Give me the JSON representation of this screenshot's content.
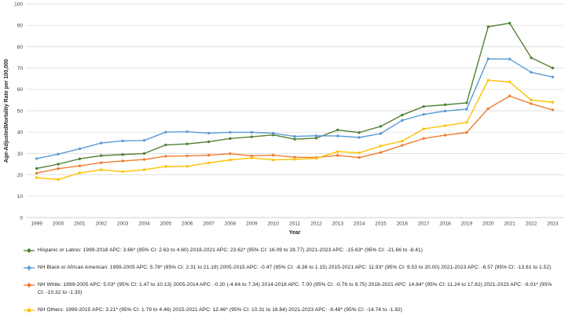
{
  "chart_data": {
    "type": "line",
    "title": "",
    "xlabel": "Year",
    "ylabel": "Age-AdjustedMortality Rate per 100,000",
    "x": [
      1999,
      2000,
      2001,
      2002,
      2003,
      2004,
      2005,
      2006,
      2007,
      2008,
      2009,
      2010,
      2011,
      2012,
      2013,
      2014,
      2015,
      2016,
      2017,
      2018,
      2019,
      2020,
      2021,
      2022,
      2023
    ],
    "ylim": [
      0,
      100
    ],
    "y_ticks": [
      0,
      10,
      20,
      30,
      40,
      50,
      60,
      70,
      80,
      90,
      100
    ],
    "grid": true,
    "legend_position": "bottom-left",
    "series": [
      {
        "name": "Hispanic or Latino",
        "color": "#538135",
        "values": [
          23.0,
          25.0,
          27.5,
          29.0,
          29.5,
          30.0,
          34.0,
          34.5,
          35.5,
          37.0,
          37.8,
          38.7,
          36.7,
          37.2,
          41.0,
          39.8,
          42.7,
          48.0,
          52.0,
          52.8,
          53.7,
          89.3,
          91.0,
          74.8,
          70.0
        ]
      },
      {
        "name": "NH Black or African American",
        "color": "#5B9BD5",
        "values": [
          27.6,
          29.7,
          32.2,
          34.9,
          35.9,
          36.1,
          40.0,
          40.2,
          39.5,
          39.9,
          39.9,
          39.5,
          38.0,
          38.3,
          38.2,
          37.5,
          39.3,
          45.5,
          48.3,
          49.9,
          50.8,
          74.3,
          74.2,
          68.0,
          65.8
        ]
      },
      {
        "name": "NH White",
        "color": "#ED7D31",
        "values": [
          20.8,
          22.9,
          24.2,
          25.7,
          26.5,
          27.2,
          28.7,
          28.9,
          29.2,
          29.9,
          28.9,
          29.2,
          28.3,
          28.1,
          29.1,
          28.1,
          30.5,
          33.8,
          37.0,
          38.6,
          39.8,
          51.0,
          56.9,
          53.3,
          50.4
        ]
      },
      {
        "name": "NH Others",
        "color": "#FFC000",
        "values": [
          18.7,
          17.8,
          20.9,
          22.4,
          21.5,
          22.4,
          23.9,
          24.0,
          25.6,
          27.0,
          27.9,
          27.0,
          27.3,
          27.7,
          30.9,
          30.3,
          33.5,
          35.8,
          41.5,
          43.0,
          44.5,
          64.3,
          63.5,
          55.0,
          54.0
        ]
      }
    ],
    "colors": {
      "gridline": "#D9D9D9",
      "axis_line": "#BFBFBF",
      "tick_text": "#404040"
    }
  },
  "legend": {
    "items": [
      {
        "label": "Hispanic or Latino: 1999-2018 APC: 3.66* (95% CI: 2.63 to 4.60) 2018-2021 APC: 23.62* (95% CI: 16.09 to 28.77) 2021-2023 APC: -15.63* (95% CI: -21.66 to -8.41)",
        "color": "#538135",
        "icon": "line-marker-icon"
      },
      {
        "label": "NH Black or African American: 1999-2005 APC: 5.78* (95% CI: 2.31 to 21.19) 2005-2015 APC: -0.47 (95% CI: -8.36 to 1.15) 2015-2021 APC: 11.93* (95% CI: 9.53 to 20.00) 2021-2023 APC: -6.57 (95% CI: -13.61 to 1.52)",
        "color": "#5B9BD5",
        "icon": "line-marker-icon"
      },
      {
        "label": "NH White: 1999-2005 APC: 5.03* (95% CI: 1.47 to 10.13) 2005-2014 APC: -0.20 (-4.64 to 7.34) 2014-2018 APC: 7.00 (95% CI: -0.76 to 9.75) 2018-2021 APC: 14.84* (95% CI: 11.24 to 17.82) 2021-2023 APC: -6.01* (95% CI: -10.32 to -1.30)",
        "color": "#ED7D31",
        "icon": "line-marker-icon"
      },
      {
        "label": "NH Others: 1999-2015 APC: 3.21* (95% CI: 1.79 to 4.46) 2015-2021 APC: 12.46* (95% CI: 10.31 to 18.84) 2021-2023 APC: -9.48* (95% CI: -14.74 to -1.82)",
        "color": "#FFC000",
        "icon": "line-marker-icon"
      }
    ]
  }
}
